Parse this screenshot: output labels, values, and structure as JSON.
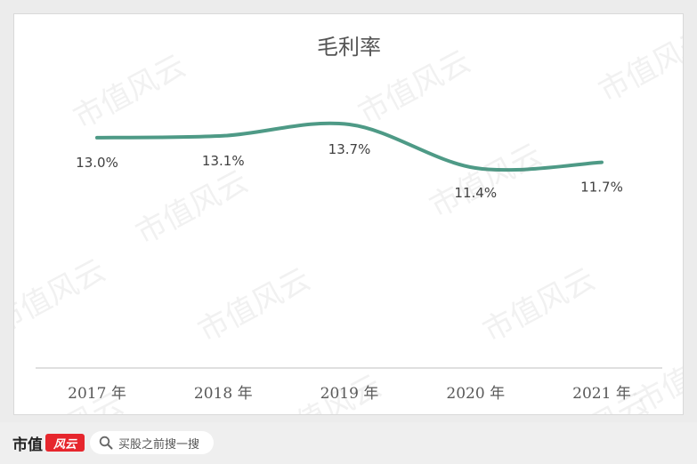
{
  "watermark_text": "市值风云",
  "footer": {
    "logo_text": "市值",
    "logo_mark_text": "风云",
    "search_placeholder": "买股之前搜一搜",
    "search_icon": "search-icon"
  },
  "chart_data": {
    "type": "line",
    "title": "毛利率",
    "categories": [
      "2017 年",
      "2018 年",
      "2019 年",
      "2020 年",
      "2021 年"
    ],
    "series": [
      {
        "values": [
          13.0,
          13.1,
          13.7,
          11.4,
          11.7
        ],
        "labels": [
          "13.0%",
          "13.1%",
          "13.7%",
          "11.4%",
          "11.7%"
        ],
        "color": "#4e9a86"
      }
    ],
    "xlabel": "",
    "ylabel": "",
    "smooth": true,
    "grid": false,
    "legend": "none",
    "axis_color": "#bfbfbf"
  }
}
